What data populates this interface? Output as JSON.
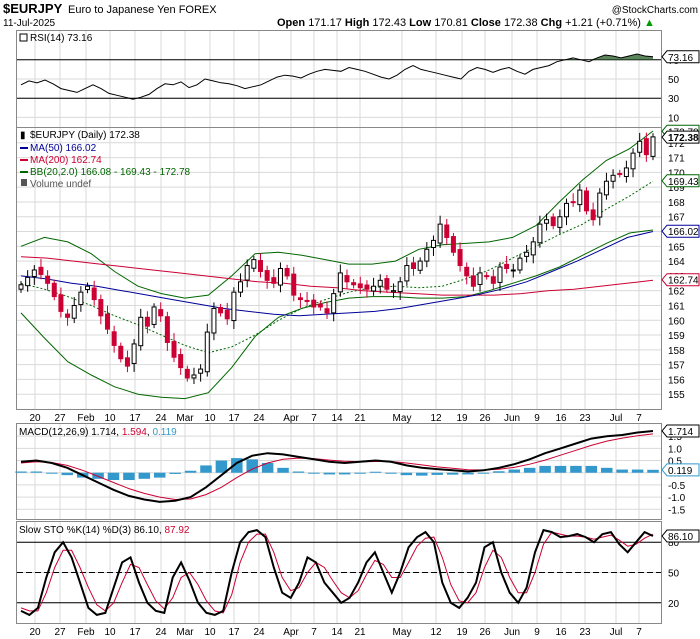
{
  "header": {
    "symbol": "$EURJPY",
    "name": "Euro to Japanese Yen FOREX",
    "date": "11-Jul-2025",
    "open_label": "Open",
    "open": "171.17",
    "high_label": "High",
    "high": "172.43",
    "low_label": "Low",
    "low": "170.81",
    "close_label": "Close",
    "close": "172.38",
    "chg_label": "Chg",
    "chg": "+1.21 (+0.71%)",
    "watermark": "@StockCharts.com",
    "arrow": "▲"
  },
  "colors": {
    "up": "#000000",
    "down": "#cc0033",
    "ma50": "#000099",
    "ma200": "#cc0033",
    "bb": "#006600",
    "bbmid": "#006600",
    "macd_hist": "#3399cc",
    "signal": "#cc0033",
    "grid": "#d9d9d9",
    "rsi_fill": "#336633"
  },
  "chart_data": [
    {
      "type": "line",
      "panel": "RSI",
      "legend": "RSI(14) 73.16",
      "last_value": "73.16",
      "ylim": [
        0,
        100
      ],
      "y_ticks": [
        "70",
        "50",
        "30",
        "10"
      ],
      "reference_levels": [
        70,
        30
      ],
      "values": [
        44,
        48,
        46,
        49,
        45,
        40,
        38,
        36,
        40,
        44,
        40,
        35,
        33,
        31,
        29,
        31,
        34,
        40,
        45,
        44,
        47,
        41,
        44,
        50,
        48,
        46,
        45,
        43,
        40,
        42,
        44,
        48,
        52,
        54,
        53,
        51,
        55,
        58,
        60,
        59,
        58,
        62,
        60,
        58,
        55,
        52,
        50,
        54,
        60,
        64,
        60,
        58,
        56,
        54,
        52,
        50,
        58,
        62,
        60,
        57,
        60,
        62,
        58,
        55,
        60,
        62,
        64,
        68,
        70,
        72,
        70,
        68,
        72,
        75,
        74,
        72,
        74,
        76,
        74,
        73.16
      ]
    },
    {
      "type": "candlestick",
      "panel": "price",
      "title": "$EURJPY (Daily) 172.38",
      "legend": [
        {
          "name": "MA(50) 166.02",
          "color": "#000099"
        },
        {
          "name": "MA(200) 162.74",
          "color": "#cc0033"
        },
        {
          "name": "BB(20,2.0) 166.08 - 169.43 - 172.78",
          "color": "#006600"
        },
        {
          "name": "Volume undef",
          "color": "#555555"
        }
      ],
      "ylim": [
        154,
        173
      ],
      "y_ticks": [
        155,
        156,
        157,
        158,
        159,
        160,
        161,
        162,
        163,
        164,
        165,
        166,
        167,
        168,
        169,
        170,
        171,
        172
      ],
      "last_labels": [
        {
          "text": "172.78",
          "value": 172.78,
          "color": "#006600"
        },
        {
          "text": "172.38",
          "value": 172.38,
          "color": "#000000",
          "bold": true
        },
        {
          "text": "169.43",
          "value": 169.43,
          "color": "#006600"
        },
        {
          "text": "166.02",
          "value": 166.02,
          "color": "#000099"
        },
        {
          "text": "162.74",
          "value": 162.74,
          "color": "#cc0033"
        }
      ],
      "close": [
        162.4,
        162.9,
        163.4,
        163.1,
        162.5,
        161.6,
        160.6,
        160.2,
        161.0,
        161.9,
        162.3,
        161.4,
        160.3,
        159.4,
        158.3,
        157.4,
        156.9,
        158.4,
        160.2,
        159.6,
        160.9,
        160.3,
        158.5,
        157.5,
        156.8,
        156.1,
        156.3,
        156.7,
        159.2,
        160.8,
        160.5,
        160.1,
        161.9,
        162.6,
        163.7,
        164.1,
        163.3,
        162.7,
        162.5,
        163.5,
        163.0,
        161.7,
        161.4,
        161.3,
        160.9,
        160.9,
        160.5,
        161.8,
        163.2,
        162.6,
        162.4,
        162.2,
        162.1,
        162.3,
        162.7,
        162.1,
        162.0,
        162.6,
        163.7,
        163.5,
        164.0,
        164.8,
        165.4,
        166.5,
        165.6,
        164.6,
        163.7,
        163.0,
        162.3,
        163.2,
        163.0,
        162.5,
        163.6,
        163.5,
        163.4,
        164.2,
        164.6,
        165.3,
        166.5,
        166.8,
        166.4,
        167.0,
        167.9,
        168.0,
        168.8,
        167.4,
        166.8,
        168.6,
        169.4,
        169.8,
        169.9,
        170.3,
        171.3,
        172.1,
        171.2,
        172.4
      ],
      "ma50": [
        163.0,
        162.8,
        162.5,
        162.3,
        162.0,
        161.7,
        161.4,
        161.1,
        160.8,
        160.6,
        160.4,
        160.3,
        160.4,
        160.5,
        160.6,
        160.8,
        161.1,
        161.4,
        161.7,
        162.1,
        162.6,
        163.3,
        164.0,
        164.8,
        165.6,
        166.0
      ],
      "ma200": [
        164.3,
        164.2,
        164.0,
        163.8,
        163.6,
        163.4,
        163.2,
        163.0,
        162.8,
        162.6,
        162.5,
        162.3,
        162.2,
        162.0,
        161.9,
        161.8,
        161.7,
        161.7,
        161.7,
        161.8,
        162.0,
        162.1,
        162.3,
        162.5,
        162.7
      ],
      "bb_mid": [
        162.5,
        162.1,
        161.6,
        161.0,
        160.3,
        159.7,
        159.0,
        158.3,
        157.8,
        158.2,
        159.0,
        160.0,
        160.8,
        161.4,
        161.9,
        162.2,
        162.3,
        162.2,
        162.3,
        162.8,
        163.4,
        164.2,
        165.0,
        165.8,
        166.5,
        167.5,
        168.4,
        169.4
      ],
      "bb_upper": [
        165.0,
        165.6,
        165.3,
        164.5,
        163.3,
        162.3,
        161.8,
        161.5,
        161.7,
        163.0,
        164.5,
        164.6,
        164.4,
        164.1,
        163.8,
        163.8,
        164.0,
        164.8,
        165.1,
        165.2,
        165.3,
        165.6,
        166.4,
        168.0,
        169.5,
        170.8,
        171.6,
        172.8
      ],
      "bb_lower": [
        160.5,
        158.8,
        157.2,
        156.3,
        155.5,
        155.0,
        154.8,
        154.7,
        155.1,
        156.8,
        158.9,
        160.2,
        160.8,
        161.2,
        161.5,
        161.6,
        161.6,
        161.5,
        161.5,
        161.6,
        162.0,
        162.5,
        163.0,
        163.6,
        164.4,
        165.2,
        165.9,
        166.1
      ]
    },
    {
      "type": "line",
      "panel": "MACD",
      "legend": {
        "label": "MACD(12,26,9)",
        "macd": "1.714",
        "signal": "1.594",
        "hist": "0.119"
      },
      "ylim": [
        -1.9,
        2.0
      ],
      "y_ticks": [
        "1.5",
        "1.0",
        "0.5",
        "0.0",
        "-0.5",
        "-1.0",
        "-1.5"
      ],
      "last_labels": [
        {
          "text": "1.714",
          "value": 1.714,
          "color": "#000000"
        },
        {
          "text": "0.119",
          "value": 0.119,
          "color": "#3399cc"
        }
      ],
      "macd": [
        0.45,
        0.5,
        0.4,
        0.2,
        -0.1,
        -0.4,
        -0.7,
        -0.95,
        -1.1,
        -1.2,
        -1.15,
        -1.0,
        -0.6,
        -0.1,
        0.4,
        0.7,
        0.8,
        0.75,
        0.65,
        0.55,
        0.45,
        0.4,
        0.45,
        0.5,
        0.45,
        0.3,
        0.2,
        0.15,
        0.1,
        0.05,
        0.1,
        0.2,
        0.35,
        0.55,
        0.8,
        1.0,
        1.2,
        1.4,
        1.5,
        1.55,
        1.65,
        1.714
      ],
      "signal": [
        0.4,
        0.45,
        0.42,
        0.3,
        0.1,
        -0.15,
        -0.4,
        -0.65,
        -0.85,
        -1.0,
        -1.1,
        -1.08,
        -0.9,
        -0.6,
        -0.2,
        0.15,
        0.4,
        0.55,
        0.6,
        0.58,
        0.52,
        0.47,
        0.45,
        0.46,
        0.46,
        0.4,
        0.32,
        0.24,
        0.18,
        0.12,
        0.11,
        0.14,
        0.22,
        0.35,
        0.52,
        0.72,
        0.92,
        1.12,
        1.3,
        1.42,
        1.52,
        1.594
      ],
      "hist": [
        0.05,
        0.05,
        -0.02,
        -0.1,
        -0.2,
        -0.25,
        -0.3,
        -0.3,
        -0.25,
        -0.2,
        -0.05,
        0.08,
        0.3,
        0.5,
        0.6,
        0.55,
        0.4,
        0.2,
        0.05,
        -0.03,
        -0.07,
        -0.07,
        0.0,
        0.04,
        -0.01,
        -0.1,
        -0.12,
        -0.09,
        -0.08,
        -0.07,
        -0.01,
        0.06,
        0.13,
        0.2,
        0.28,
        0.28,
        0.28,
        0.28,
        0.2,
        0.13,
        0.13,
        0.119
      ]
    },
    {
      "type": "line",
      "panel": "Slow STO",
      "legend": {
        "label": "Slow STO %K(14) %D(3)",
        "k": "86.10",
        "d": "87.92"
      },
      "ylim": [
        0,
        100
      ],
      "y_ticks": [
        "80",
        "50",
        "20"
      ],
      "reference_levels": [
        80,
        20
      ],
      "last_labels": [
        {
          "text": "86.10",
          "value": 86.1,
          "color": "#000000"
        }
      ],
      "k": [
        12,
        8,
        15,
        45,
        70,
        80,
        65,
        40,
        15,
        8,
        10,
        35,
        60,
        65,
        40,
        20,
        12,
        10,
        45,
        60,
        42,
        20,
        10,
        8,
        12,
        50,
        80,
        90,
        92,
        85,
        55,
        30,
        25,
        40,
        65,
        60,
        40,
        30,
        20,
        25,
        40,
        60,
        70,
        50,
        30,
        50,
        75,
        85,
        90,
        80,
        40,
        20,
        15,
        25,
        40,
        75,
        80,
        50,
        30,
        20,
        35,
        70,
        92,
        90,
        85,
        86,
        88,
        85,
        80,
        88,
        90,
        78,
        70,
        80,
        90,
        86.1
      ],
      "d": [
        15,
        12,
        12,
        30,
        55,
        72,
        72,
        55,
        35,
        18,
        12,
        20,
        40,
        58,
        55,
        38,
        22,
        14,
        25,
        45,
        50,
        38,
        22,
        12,
        10,
        28,
        60,
        80,
        88,
        88,
        70,
        45,
        32,
        35,
        50,
        60,
        55,
        42,
        30,
        25,
        32,
        48,
        62,
        58,
        45,
        45,
        60,
        76,
        84,
        85,
        65,
        38,
        22,
        20,
        30,
        55,
        72,
        65,
        45,
        30,
        30,
        50,
        78,
        90,
        88,
        86,
        86,
        85,
        83,
        85,
        87,
        82,
        76,
        78,
        84,
        87.92
      ]
    }
  ],
  "x_axis_labels": [
    "20",
    "27",
    "Feb",
    "10",
    "17",
    "24",
    "Mar",
    "10",
    "17",
    "24",
    "Apr",
    "7",
    "14",
    "21",
    "May",
    "12",
    "19",
    "26",
    "Jun",
    "9",
    "16",
    "23",
    "Jul",
    "7"
  ]
}
